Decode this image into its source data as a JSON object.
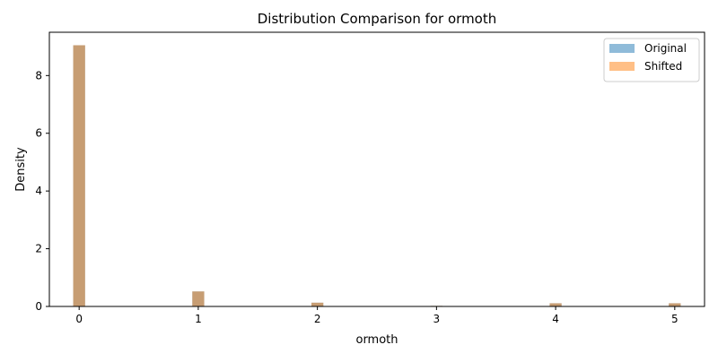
{
  "chart_data": {
    "type": "bar",
    "title": "Distribution Comparison for ormoth",
    "xlabel": "ormoth",
    "ylabel": "Density",
    "xlim": [
      -0.25,
      5.25
    ],
    "ylim": [
      0,
      9.5
    ],
    "xticks": [
      0,
      1,
      2,
      3,
      4,
      5
    ],
    "yticks": [
      0,
      2,
      4,
      6,
      8
    ],
    "bar_width": 0.1,
    "legend_position": "top-right",
    "grid": false,
    "series": [
      {
        "name": "Original",
        "color": "#1f77b4",
        "alpha": 0.5,
        "x": [
          0,
          1,
          2,
          3,
          4,
          5
        ],
        "values": [
          9.05,
          0.52,
          0.13,
          0.02,
          0.11,
          0.11
        ]
      },
      {
        "name": "Shifted",
        "color": "#ff7f0e",
        "alpha": 0.5,
        "x": [
          0,
          1,
          2,
          3,
          4,
          5
        ],
        "values": [
          9.05,
          0.52,
          0.13,
          0.02,
          0.11,
          0.11
        ]
      }
    ]
  }
}
